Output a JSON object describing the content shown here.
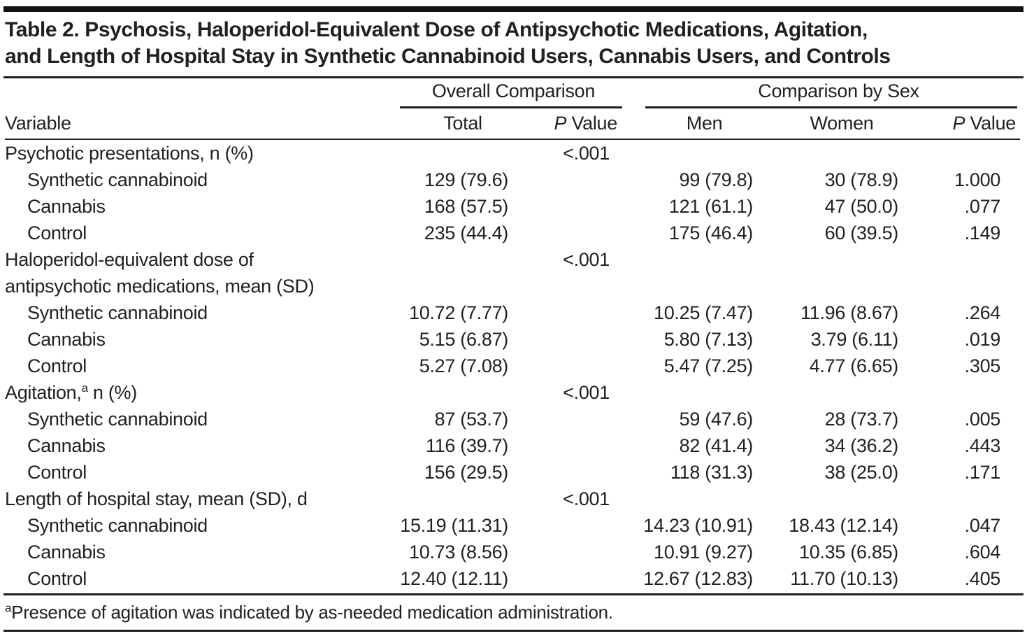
{
  "title": "Table 2. Psychosis, Haloperidol-Equivalent Dose of Antipsychotic Medications, Agitation,\nand Length of Hospital Stay in Synthetic Cannabinoid Users, Cannabis Users, and Controls",
  "header": {
    "variable": "Variable",
    "spanner_overall": "Overall Comparison",
    "spanner_by_sex": "Comparison by Sex",
    "col_total": "Total",
    "p_italic": "P",
    "p_word": "Value",
    "col_men": "Men",
    "col_women": "Women"
  },
  "rows": [
    {
      "label": "Psychotic presentations, n (%)",
      "sup": "",
      "label2": "",
      "indent": false,
      "total": "",
      "p_overall": "<.001",
      "men": "",
      "women": "",
      "p_sex": ""
    },
    {
      "label": "Synthetic cannabinoid",
      "sup": "",
      "label2": "",
      "indent": true,
      "total": "129 (79.6)",
      "p_overall": "",
      "men": "99 (79.8)",
      "women": "30 (78.9)",
      "p_sex": "1.000"
    },
    {
      "label": "Cannabis",
      "sup": "",
      "label2": "",
      "indent": true,
      "total": "168 (57.5)",
      "p_overall": "",
      "men": "121 (61.1)",
      "women": "47 (50.0)",
      "p_sex": ".077"
    },
    {
      "label": "Control",
      "sup": "",
      "label2": "",
      "indent": true,
      "total": "235 (44.4)",
      "p_overall": "",
      "men": "175 (46.4)",
      "women": "60 (39.5)",
      "p_sex": ".149"
    },
    {
      "label": "Haloperidol-equivalent dose of\nantipsychotic medications, mean (SD)",
      "sup": "",
      "label2": "",
      "indent": false,
      "total": "",
      "p_overall": "<.001",
      "men": "",
      "women": "",
      "p_sex": ""
    },
    {
      "label": "Synthetic cannabinoid",
      "sup": "",
      "label2": "",
      "indent": true,
      "total": "10.72 (7.77)",
      "p_overall": "",
      "men": "10.25 (7.47)",
      "women": "11.96 (8.67)",
      "p_sex": ".264"
    },
    {
      "label": "Cannabis",
      "sup": "",
      "label2": "",
      "indent": true,
      "total": "5.15 (6.87)",
      "p_overall": "",
      "men": "5.80 (7.13)",
      "women": "3.79 (6.11)",
      "p_sex": ".019"
    },
    {
      "label": "Control",
      "sup": "",
      "label2": "",
      "indent": true,
      "total": "5.27 (7.08)",
      "p_overall": "",
      "men": "5.47 (7.25)",
      "women": "4.77 (6.65)",
      "p_sex": ".305"
    },
    {
      "label": "Agitation,",
      "sup": "a",
      "label2": " n (%)",
      "indent": false,
      "total": "",
      "p_overall": "<.001",
      "men": "",
      "women": "",
      "p_sex": ""
    },
    {
      "label": "Synthetic cannabinoid",
      "sup": "",
      "label2": "",
      "indent": true,
      "total": "87 (53.7)",
      "p_overall": "",
      "men": "59 (47.6)",
      "women": "28 (73.7)",
      "p_sex": ".005"
    },
    {
      "label": "Cannabis",
      "sup": "",
      "label2": "",
      "indent": true,
      "total": "116 (39.7)",
      "p_overall": "",
      "men": "82 (41.4)",
      "women": "34 (36.2)",
      "p_sex": ".443"
    },
    {
      "label": "Control",
      "sup": "",
      "label2": "",
      "indent": true,
      "total": "156 (29.5)",
      "p_overall": "",
      "men": "118 (31.3)",
      "women": "38 (25.0)",
      "p_sex": ".171"
    },
    {
      "label": "Length of hospital stay, mean (SD), d",
      "sup": "",
      "label2": "",
      "indent": false,
      "total": "",
      "p_overall": "<.001",
      "men": "",
      "women": "",
      "p_sex": ""
    },
    {
      "label": "Synthetic cannabinoid",
      "sup": "",
      "label2": "",
      "indent": true,
      "total": "15.19 (11.31)",
      "p_overall": "",
      "men": "14.23 (10.91)",
      "women": "18.43 (12.14)",
      "p_sex": ".047"
    },
    {
      "label": "Cannabis",
      "sup": "",
      "label2": "",
      "indent": true,
      "total": "10.73 (8.56)",
      "p_overall": "",
      "men": "10.91 (9.27)",
      "women": "10.35 (6.85)",
      "p_sex": ".604"
    },
    {
      "label": "Control",
      "sup": "",
      "label2": "",
      "indent": true,
      "total": "12.40 (12.11)",
      "p_overall": "",
      "men": "12.67 (12.83)",
      "women": "11.70 (10.13)",
      "p_sex": ".405"
    }
  ],
  "footnote": {
    "sup": "a",
    "text": "Presence of agitation was indicated by as-needed medication administration."
  },
  "colors": {
    "text": "#231f20",
    "rule": "#231f20",
    "top_bar": "#121212",
    "background": "#ffffff"
  }
}
